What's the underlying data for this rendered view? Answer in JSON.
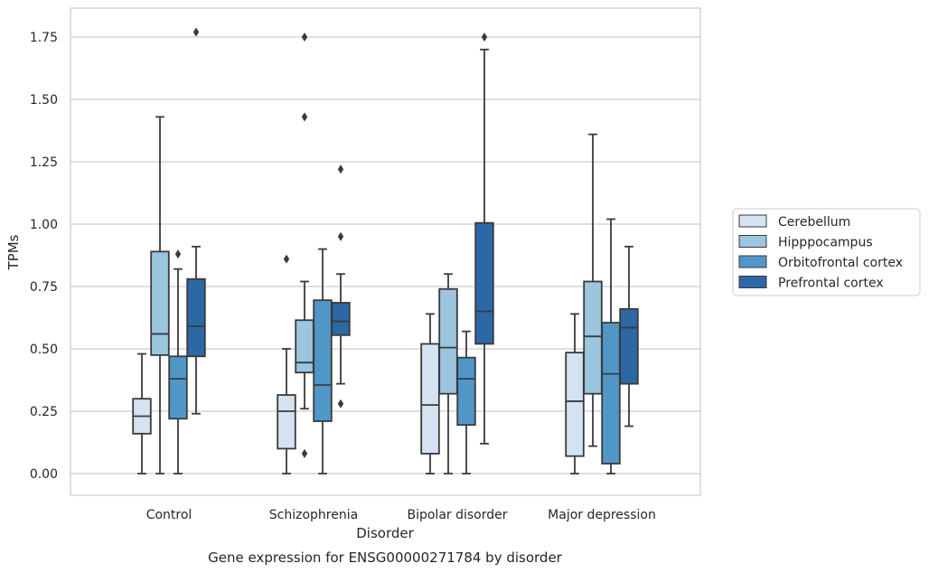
{
  "chart_data": {
    "type": "boxplot",
    "title": "Gene expression for ENSG00000271784 by disorder",
    "xlabel": "Disorder",
    "ylabel": "TPMs",
    "ylim": [
      -0.085,
      1.86
    ],
    "yticks": [
      0.0,
      0.25,
      0.5,
      0.75,
      1.0,
      1.25,
      1.5,
      1.75
    ],
    "ytick_labels": [
      "0.00",
      "0.25",
      "0.50",
      "0.75",
      "1.00",
      "1.25",
      "1.50",
      "1.75"
    ],
    "grid": "horizontal",
    "legend_position": "right",
    "categories": [
      "Control",
      "Schizophrenia",
      "Bipolar disorder",
      "Major depression"
    ],
    "series": [
      {
        "name": "Cerebellum",
        "color": "#d4e3f2",
        "boxes": [
          {
            "whisker_low": 0.0,
            "q1": 0.16,
            "median": 0.23,
            "q3": 0.3,
            "whisker_high": 0.48,
            "outliers": []
          },
          {
            "whisker_low": 0.0,
            "q1": 0.1,
            "median": 0.25,
            "q3": 0.315,
            "whisker_high": 0.5,
            "outliers": [
              0.86
            ]
          },
          {
            "whisker_low": 0.0,
            "q1": 0.08,
            "median": 0.275,
            "q3": 0.52,
            "whisker_high": 0.64,
            "outliers": []
          },
          {
            "whisker_low": 0.0,
            "q1": 0.07,
            "median": 0.29,
            "q3": 0.485,
            "whisker_high": 0.64,
            "outliers": []
          }
        ]
      },
      {
        "name": "Hipppocampus",
        "color": "#9cc5e0",
        "boxes": [
          {
            "whisker_low": 0.0,
            "q1": 0.475,
            "median": 0.56,
            "q3": 0.89,
            "whisker_high": 1.43,
            "outliers": []
          },
          {
            "whisker_low": 0.26,
            "q1": 0.405,
            "median": 0.445,
            "q3": 0.615,
            "whisker_high": 0.77,
            "outliers": [
              0.08,
              1.43,
              1.75
            ]
          },
          {
            "whisker_low": 0.0,
            "q1": 0.32,
            "median": 0.505,
            "q3": 0.74,
            "whisker_high": 0.8,
            "outliers": []
          },
          {
            "whisker_low": 0.11,
            "q1": 0.32,
            "median": 0.55,
            "q3": 0.77,
            "whisker_high": 1.36,
            "outliers": []
          }
        ]
      },
      {
        "name": "Orbitofrontal cortex",
        "color": "#5097c8",
        "boxes": [
          {
            "whisker_low": 0.0,
            "q1": 0.22,
            "median": 0.38,
            "q3": 0.47,
            "whisker_high": 0.82,
            "outliers": [
              0.88
            ]
          },
          {
            "whisker_low": 0.0,
            "q1": 0.21,
            "median": 0.355,
            "q3": 0.695,
            "whisker_high": 0.9,
            "outliers": []
          },
          {
            "whisker_low": 0.0,
            "q1": 0.195,
            "median": 0.38,
            "q3": 0.465,
            "whisker_high": 0.57,
            "outliers": []
          },
          {
            "whisker_low": 0.0,
            "q1": 0.04,
            "median": 0.4,
            "q3": 0.605,
            "whisker_high": 1.02,
            "outliers": []
          }
        ]
      },
      {
        "name": "Prefrontal cortex",
        "color": "#2d68a6",
        "boxes": [
          {
            "whisker_low": 0.24,
            "q1": 0.47,
            "median": 0.59,
            "q3": 0.78,
            "whisker_high": 0.91,
            "outliers": [
              1.77
            ]
          },
          {
            "whisker_low": 0.36,
            "q1": 0.555,
            "median": 0.61,
            "q3": 0.685,
            "whisker_high": 0.8,
            "outliers": [
              0.28,
              0.95,
              1.22
            ]
          },
          {
            "whisker_low": 0.12,
            "q1": 0.52,
            "median": 0.65,
            "q3": 1.005,
            "whisker_high": 1.7,
            "outliers": [
              1.75
            ]
          },
          {
            "whisker_low": 0.19,
            "q1": 0.36,
            "median": 0.585,
            "q3": 0.66,
            "whisker_high": 0.91,
            "outliers": []
          }
        ]
      }
    ]
  }
}
